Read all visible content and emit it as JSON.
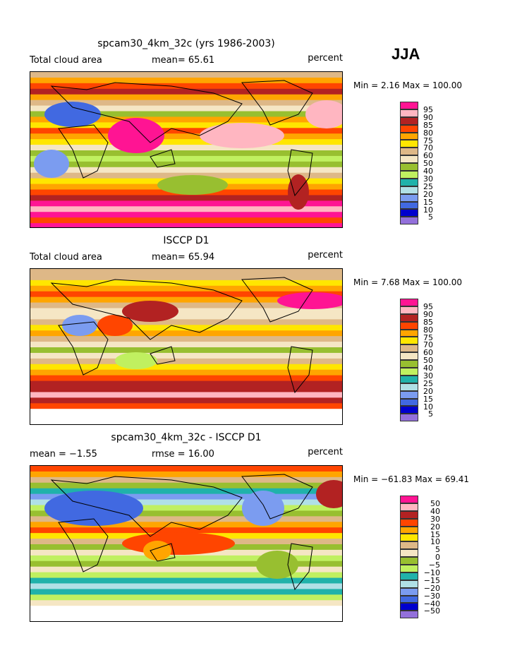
{
  "season": "JJA",
  "palette": [
    "#9370db",
    "#0000cd",
    "#4169e1",
    "#7b9cf0",
    "#b0e0e6",
    "#20b2aa",
    "#c0f060",
    "#98bf30",
    "#f5e6c4",
    "#deb887",
    "#ffe600",
    "#ffa500",
    "#ff4500",
    "#b22222",
    "#ffb6c1",
    "#ff1493"
  ],
  "panels": [
    {
      "title": "spcam30_4km_32c (yrs 1986-2003)",
      "left": "Total cloud area",
      "mid": "mean=  65.61",
      "units": "percent",
      "minmax": "Min =    2.16  Max = 100.00",
      "levels": [
        "95",
        "90",
        "85",
        "80",
        "75",
        "70",
        "60",
        "50",
        "40",
        "30",
        "25",
        "20",
        "15",
        "10",
        "5"
      ]
    },
    {
      "title": "ISCCP D1",
      "left": "Total cloud area",
      "mid": "mean=  65.94",
      "units": "percent",
      "minmax": "Min =    7.68  Max = 100.00",
      "levels": [
        "95",
        "90",
        "85",
        "80",
        "75",
        "70",
        "60",
        "50",
        "40",
        "30",
        "25",
        "20",
        "15",
        "10",
        "5"
      ]
    },
    {
      "title": "spcam30_4km_32c - ISCCP D1",
      "left": "mean =  −1.55",
      "mid": "rmse =  16.00",
      "units": "percent",
      "minmax": "Min = −61.83  Max =  69.41",
      "levels": [
        "50",
        "40",
        "30",
        "20",
        "15",
        "10",
        "5",
        "0",
        "−5",
        "−10",
        "−15",
        "−20",
        "−30",
        "−40",
        "−50"
      ]
    }
  ]
}
